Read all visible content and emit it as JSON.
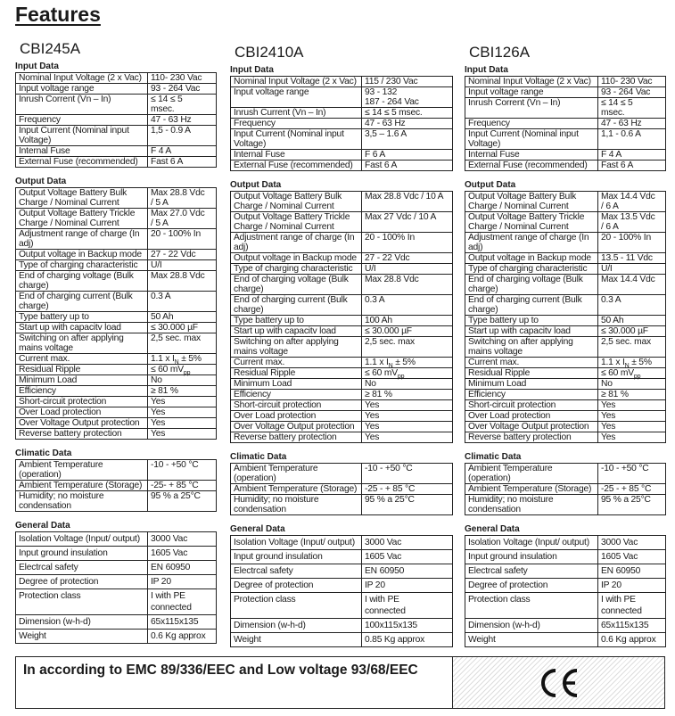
{
  "title": "Features",
  "columns": [
    {
      "model": "CBI245A",
      "sections": [
        {
          "title": "Input Data",
          "rows": [
            {
              "label": "Nominal Input Voltage (2 x Vac)",
              "value": "110-  230 Vac"
            },
            {
              "label": "Input voltage range",
              "value": "93 - 264 Vac"
            },
            {
              "label": "Inrush Corrent (Vn – In)",
              "value": "≤ 14 ≤ 5\nmsec."
            },
            {
              "label": "Frequency",
              "value": "47 - 63 Hz"
            },
            {
              "label": "Input Current  (Nominal input\nVoltage)",
              "value": "1,5 - 0.9 A"
            },
            {
              "label": "Internal Fuse",
              "value": "F 4 A"
            },
            {
              "label": "External Fuse (recommended)",
              "value": "Fast 6 A"
            }
          ]
        },
        {
          "title": "Output Data",
          "rows": [
            {
              "label": "Output Voltage Battery Bulk\nCharge / Nominal Current",
              "value": "Max 28.8 Vdc\n/ 5 A"
            },
            {
              "label": "Output Voltage Battery Trickle\nCharge / Nominal Current",
              "value": "Max 27.0 Vdc\n/ 5 A"
            },
            {
              "label": "Adjustment range of charge (In\nadj)",
              "value": "20 - 100% In"
            },
            {
              "label": "Output voltage in Backup mode",
              "value": "27 - 22 Vdc"
            },
            {
              "label": "Type of charging characteristic",
              "value": "U/I"
            },
            {
              "label": "End of charging voltage (Bulk\ncharge)",
              "value": "Max 28.8 Vdc"
            },
            {
              "label": "End of charging current (Bulk\ncharge)",
              "value": "0.3 A"
            },
            {
              "label": "Type battery up to",
              "value": "50 Ah"
            },
            {
              "label": "Start up with capacitv load",
              "value": "≤ 30.000 µF"
            },
            {
              "label": "Switching on after applying\nmains voltage",
              "value": "2,5 sec. max"
            },
            {
              "label": "Current max.",
              "value": "1.1 x I",
              "sub": "N",
              "tail": "±  5%"
            },
            {
              "label": "Residual Ripple",
              "value": "≤ 60 mV",
              "sub": "pp"
            },
            {
              "label": "Minimum Load",
              "value": "No"
            },
            {
              "label": "Efficiency",
              "value": "≥ 81 %"
            },
            {
              "label": "Short-circuit protection",
              "value": "Yes"
            },
            {
              "label": "Over Load protection",
              "value": "Yes"
            },
            {
              "label": "Over Voltage Output protection",
              "value": "Yes"
            },
            {
              "label": "Reverse battery protection",
              "value": "Yes"
            }
          ]
        },
        {
          "title": "Climatic Data",
          "rows": [
            {
              "label": "Ambient Temperature\n(operation)",
              "value": "-10 - +50 °C"
            },
            {
              "label": "Ambient Temperature (Storage)",
              "value": "-25- + 85 °C"
            },
            {
              "label": "Humidity; no moisture\ncondensation",
              "value": "95 % a 25°C"
            }
          ]
        },
        {
          "title": "General Data",
          "rows": [
            {
              "label": "Isolation Voltage (Input/ output)",
              "value": "3000 Vac"
            },
            {
              "label": "Input ground insulation",
              "value": "1605 Vac"
            },
            {
              "label": "Electrcal safety",
              "value": "EN 60950"
            },
            {
              "label": "Degree of protection",
              "value": "IP 20"
            },
            {
              "label": "Protection class",
              "value": "I with PE\nconnected"
            },
            {
              "label": "Dimension (w-h-d)",
              "value": "65x115x135"
            },
            {
              "label": "Weight",
              "value": "0.6 Kg approx"
            }
          ]
        }
      ]
    },
    {
      "model": "CBI2410A",
      "sections": [
        {
          "title": "Input Data",
          "rows": [
            {
              "label": "Nominal Input Voltage (2 x Vac)",
              "value": "115 /  230 Vac"
            },
            {
              "label": "Input voltage range",
              "value": "93 - 132\n187 - 264 Vac"
            },
            {
              "label": "Inrush Current (Vn – In)",
              "value": "≤ 14 ≤ 5 msec."
            },
            {
              "label": "Frequency",
              "value": "47 - 63 Hz"
            },
            {
              "label": "Input Current  (Nominal input\nVoltage)",
              "value": "3,5 – 1.6 A"
            },
            {
              "label": "Internal Fuse",
              "value": "F 6 A"
            },
            {
              "label": "External Fuse (recommended)",
              "value": "Fast 6 A"
            }
          ]
        },
        {
          "title": "Output Data",
          "rows": [
            {
              "label": "Output Voltage Battery Bulk\nCharge / Nominal Current",
              "value": "Max 28.8 Vdc / 10 A"
            },
            {
              "label": "Output Voltage Battery Trickle\nCharge / Nominal Current",
              "value": "Max 27 Vdc / 10 A"
            },
            {
              "label": "Adjustment range of charge (In\nadj)",
              "value": "20 - 100% In"
            },
            {
              "label": "Output voltage in Backup mode",
              "value": "27 - 22 Vdc"
            },
            {
              "label": "Type of charging characteristic",
              "value": "U/I"
            },
            {
              "label": "End of charging voltage (Bulk\ncharge)",
              "value": "Max 28.8 Vdc"
            },
            {
              "label": "End of charging current (Bulk\ncharge)",
              "value": "0.3 A"
            },
            {
              "label": "Type battery up to",
              "value": "100 Ah"
            },
            {
              "label": "Start up with capacitv load",
              "value": "≤ 30.000 µF"
            },
            {
              "label": "Switching on after applying\nmains voltage",
              "value": "2,5 sec. max"
            },
            {
              "label": "Current max.",
              "value": "1.1 x I",
              "sub": "N",
              "tail": "±  5%"
            },
            {
              "label": "Residual Ripple",
              "value": "≤ 60 mV",
              "sub": "pp"
            },
            {
              "label": "Minimum Load",
              "value": "No"
            },
            {
              "label": "Efficiency",
              "value": "≥ 81 %"
            },
            {
              "label": "Short-circuit protection",
              "value": "Yes"
            },
            {
              "label": "Over Load protection",
              "value": "Yes"
            },
            {
              "label": "Over Voltage Output protection",
              "value": "Yes"
            },
            {
              "label": "Reverse battery protection",
              "value": "Yes"
            }
          ]
        },
        {
          "title": "Climatic Data",
          "rows": [
            {
              "label": "Ambient Temperature\n(operation)",
              "value": "-10 - +50 °C"
            },
            {
              "label": "Ambient Temperature (Storage)",
              "value": "-25 - + 85 °C"
            },
            {
              "label": "Humidity; no moisture\ncondensation",
              "value": "95 % a 25°C"
            }
          ]
        },
        {
          "title": "General Data",
          "rows": [
            {
              "label": "Isolation Voltage (Input/ output)",
              "value": "3000 Vac"
            },
            {
              "label": "Input ground insulation",
              "value": "1605 Vac"
            },
            {
              "label": "Electrcal safety",
              "value": "EN 60950"
            },
            {
              "label": "Degree of protection",
              "value": "IP 20"
            },
            {
              "label": "Protection class",
              "value": "I with PE\nconnected"
            },
            {
              "label": "Dimension (w-h-d)",
              "value": "100x115x135"
            },
            {
              "label": "Weight",
              "value": "0.85 Kg approx"
            }
          ]
        }
      ]
    },
    {
      "model": "CBI126A",
      "sections": [
        {
          "title": "Input Data",
          "rows": [
            {
              "label": "Nominal Input Voltage (2 x Vac)",
              "value": "110-  230 Vac"
            },
            {
              "label": "Input voltage range",
              "value": "93 - 264 Vac"
            },
            {
              "label": "Inrush Corrent (Vn – In)",
              "value": "≤ 14 ≤ 5\nmsec."
            },
            {
              "label": "Frequency",
              "value": "47 - 63 Hz"
            },
            {
              "label": "Input Current  (Nominal input\nVoltage)",
              "value": "1,1 - 0.6 A"
            },
            {
              "label": "Internal Fuse",
              "value": "F 4 A"
            },
            {
              "label": "External Fuse (recommended)",
              "value": "Fast 6 A"
            }
          ]
        },
        {
          "title": "Output Data",
          "rows": [
            {
              "label": "Output Voltage Battery Bulk\nCharge / Nominal Current",
              "value": "Max 14.4 Vdc\n/ 6 A"
            },
            {
              "label": "Output Voltage Battery Trickle\nCharge / Nominal Current",
              "value": "Max 13.5 Vdc\n/ 6 A"
            },
            {
              "label": "Adjustment range of charge (In\nadj)",
              "value": "20 - 100% In"
            },
            {
              "label": "Output voltage in Backup mode",
              "value": "13.5 - 11 Vdc"
            },
            {
              "label": "Type of charging characteristic",
              "value": "U/I"
            },
            {
              "label": "End of charging voltage (Bulk\ncharge)",
              "value": "Max 14.4 Vdc"
            },
            {
              "label": "End of charging current (Bulk\ncharge)",
              "value": "0.3 A"
            },
            {
              "label": "Type battery up to",
              "value": "50 Ah"
            },
            {
              "label": "Start up with capacitv load",
              "value": "≤ 30.000 µF"
            },
            {
              "label": "Switching on after applying\nmains voltage",
              "value": "2,5 sec. max"
            },
            {
              "label": "Current max.",
              "value": "1.1 x I",
              "sub": "N",
              "tail": "±  5%"
            },
            {
              "label": "Residual Ripple",
              "value": "≤ 60 mV",
              "sub": "pp"
            },
            {
              "label": "Minimum Load",
              "value": "No"
            },
            {
              "label": "Efficiency",
              "value": "≥ 81 %"
            },
            {
              "label": "Short-circuit protection",
              "value": "Yes"
            },
            {
              "label": "Over Load protection",
              "value": "Yes"
            },
            {
              "label": "Over Voltage Output protection",
              "value": "Yes"
            },
            {
              "label": "Reverse battery protection",
              "value": "Yes"
            }
          ]
        },
        {
          "title": "Climatic Data",
          "rows": [
            {
              "label": "Ambient Temperature\n(operation)",
              "value": "-10 - +50 °C"
            },
            {
              "label": "Ambient Temperature (Storage)",
              "value": "-25 - + 85 °C"
            },
            {
              "label": "Humidity; no moisture\ncondensation",
              "value": "95 % a 25°C"
            }
          ]
        },
        {
          "title": "General Data",
          "rows": [
            {
              "label": "Isolation Voltage (Input/ output)",
              "value": "3000 Vac"
            },
            {
              "label": "Input ground insulation",
              "value": "1605 Vac"
            },
            {
              "label": "Electrcal safety",
              "value": "EN 60950"
            },
            {
              "label": "Degree of protection",
              "value": "IP 20"
            },
            {
              "label": "Protection class",
              "value": "I with PE\nconnected"
            },
            {
              "label": "Dimension (w-h-d)",
              "value": "65x115x135"
            },
            {
              "label": "Weight",
              "value": "0.6 Kg approx"
            }
          ]
        }
      ]
    }
  ],
  "footer": {
    "text": "In according to EMC 89/336/EEC and Low voltage 93/68/EEC",
    "mark": "CE"
  }
}
